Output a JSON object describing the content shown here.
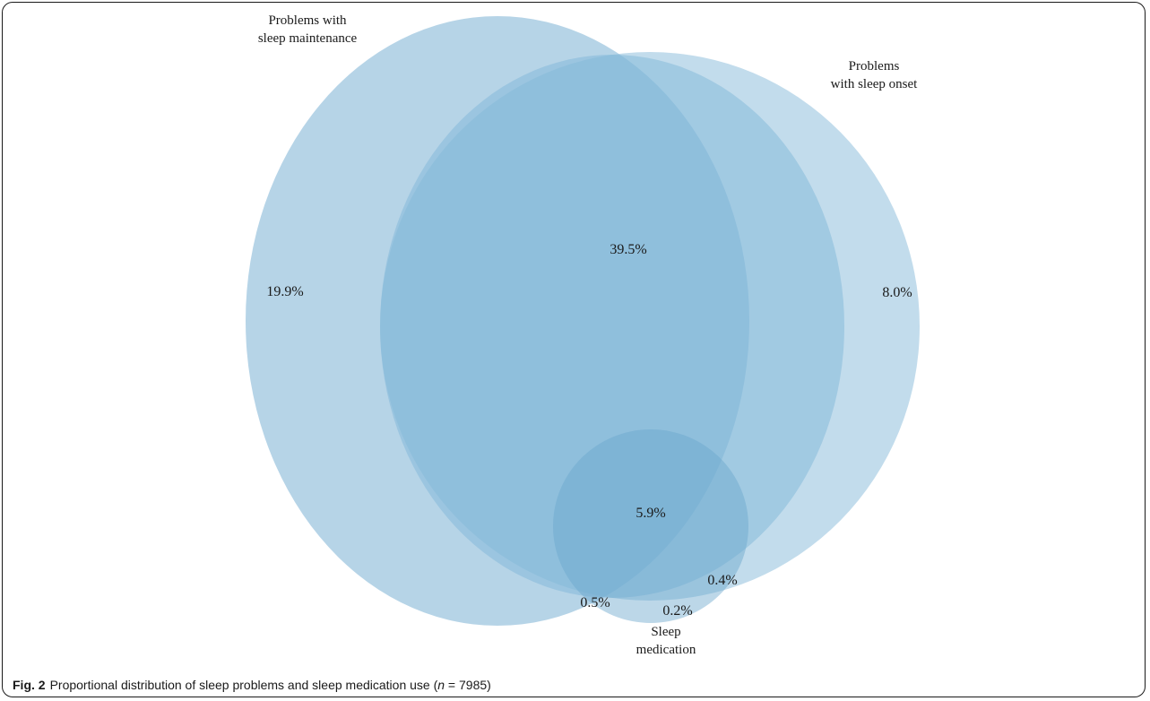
{
  "figure": {
    "number": "Fig. 2",
    "caption_start": "Proportional distribution of sleep problems and sleep medication use (",
    "n_symbol": "n",
    "caption_end": " = 7985)"
  },
  "venn": {
    "sets": {
      "maintenance": {
        "label_line1": "Problems with",
        "label_line2": "sleep maintenance",
        "color": "#a9cde3"
      },
      "onset": {
        "label_line1": "Problems",
        "label_line2": "with sleep onset",
        "color": "#a9cde3"
      },
      "medication": {
        "label_line1": "Sleep",
        "label_line2": "medication",
        "color": "#7fb3d3"
      }
    },
    "regions": {
      "maintenance_only": "19.9%",
      "maintenance_and_onset": "39.5%",
      "onset_only": "8.0%",
      "all_three": "5.9%",
      "medication_and_maintenance": "0.5%",
      "medication_only": "0.2%",
      "medication_and_onset": "0.4%"
    }
  }
}
